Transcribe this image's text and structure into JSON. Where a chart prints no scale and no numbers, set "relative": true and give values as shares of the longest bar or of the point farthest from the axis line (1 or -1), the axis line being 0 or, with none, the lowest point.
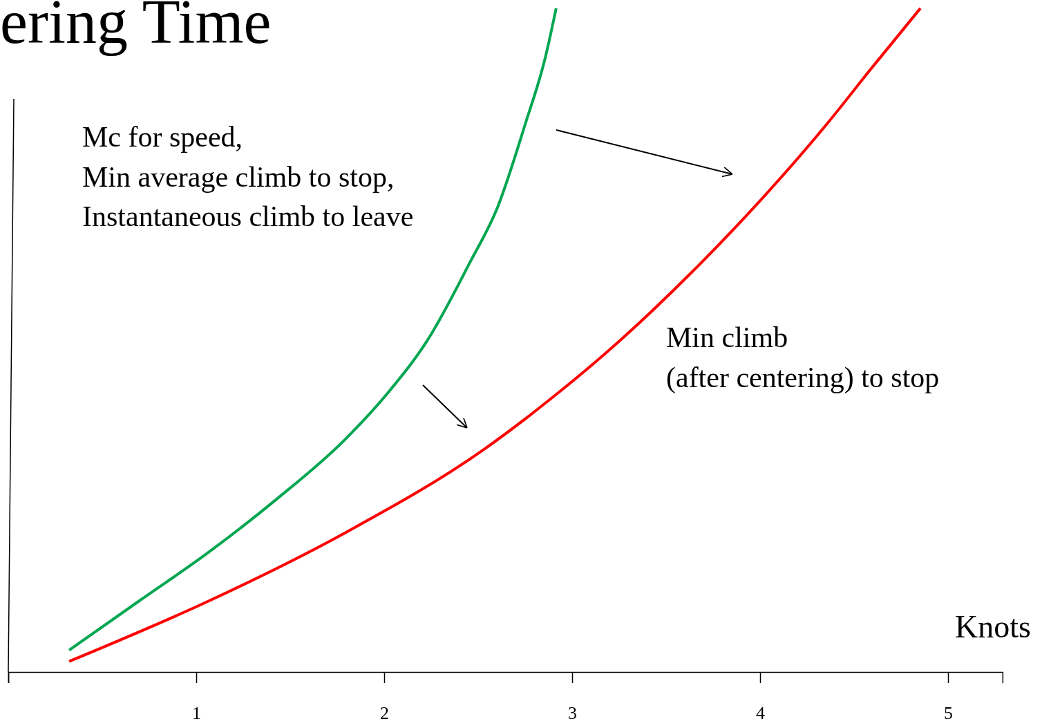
{
  "chart_data": {
    "type": "line",
    "title": "ering Time",
    "xlabel": "Knots",
    "relative": true,
    "xlim": [
      0,
      5.29
    ],
    "xticks": [
      {
        "value": 0,
        "label": null
      },
      1,
      2,
      3,
      4,
      5
    ],
    "annotations": [
      "Mc for speed,",
      "Min average climb to stop,",
      "Instantaneous climb to leave",
      "Min climb",
      "(after centering) to stop"
    ],
    "series": [
      {
        "color": "#00a650",
        "x": [
          0.324,
          0.691,
          1.059,
          1.426,
          1.794,
          2.015,
          2.235,
          2.456,
          2.603,
          2.75,
          2.86,
          2.915
        ],
        "values": [
          0.033,
          0.106,
          0.179,
          0.26,
          0.351,
          0.419,
          0.502,
          0.617,
          0.7,
          0.825,
          0.929,
          1
        ]
      },
      {
        "color": "#ff0000",
        "x": [
          0.324,
          1.059,
          1.794,
          2.529,
          2.897,
          3.265,
          3.632,
          4.0,
          4.368,
          4.588,
          4.853
        ],
        "values": [
          0.016,
          0.106,
          0.21,
          0.335,
          0.414,
          0.502,
          0.601,
          0.71,
          0.83,
          0.908,
          1
        ]
      }
    ]
  }
}
